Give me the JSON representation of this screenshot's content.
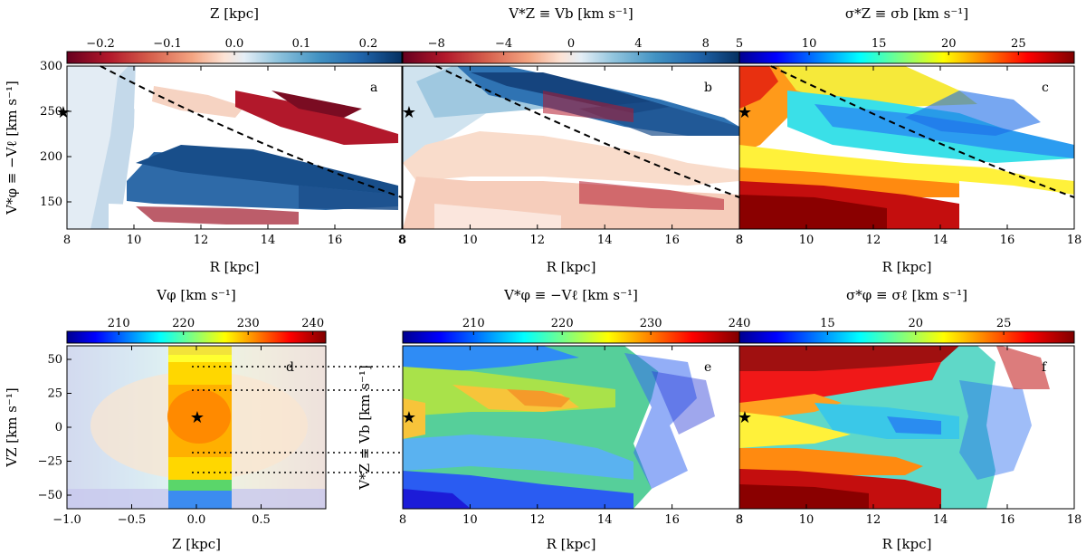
{
  "figure": {
    "description_hidden": ""
  },
  "chart_data": [
    {
      "type": "heatmap",
      "panel": "a",
      "colorbar_title": "Z [kpc]",
      "colorbar_ticks": [
        "−0.2",
        "−0.1",
        "0.0",
        "0.1",
        "0.2"
      ],
      "colorbar_range": [
        -0.25,
        0.25
      ],
      "colormap": "RdBu",
      "x_ticks": [
        "8",
        "10",
        "12",
        "14",
        "16",
        "8"
      ],
      "y_ticks": [
        "300",
        "250",
        "200",
        "150"
      ],
      "xlabel": "R [kpc]",
      "ylabel": "V*φ ≡ −Vℓ [km s⁻¹]",
      "xlim": [
        8,
        18
      ],
      "ylim": [
        120,
        300
      ],
      "sun_marker": {
        "x": 8.2,
        "y": 248
      },
      "dashed_curve": "decreasing reference curve from (9.2, 300) to (18, 153)"
    },
    {
      "type": "heatmap",
      "panel": "b",
      "colorbar_title": "V*Z ≡ Vb [km s⁻¹]",
      "colorbar_ticks": [
        "−8",
        "−4",
        "0",
        "4",
        "8"
      ],
      "colorbar_range": [
        -10,
        10
      ],
      "colormap": "RdBu",
      "x_ticks": [
        "8",
        "10",
        "12",
        "14",
        "16",
        "8"
      ],
      "xlabel": "R [kpc]",
      "xlim": [
        8,
        18
      ],
      "ylim": [
        120,
        300
      ],
      "sun_marker": {
        "x": 8.2,
        "y": 248
      }
    },
    {
      "type": "heatmap",
      "panel": "c",
      "colorbar_title": "σ*Z ≡ σb [km s⁻¹]",
      "colorbar_ticks": [
        "5",
        "10",
        "15",
        "20",
        "25"
      ],
      "colorbar_range": [
        5,
        29
      ],
      "colormap": "jet",
      "x_ticks": [
        "8",
        "10",
        "12",
        "14",
        "16",
        "18"
      ],
      "xlabel": "R [kpc]",
      "xlim": [
        8,
        18
      ],
      "ylim": [
        120,
        300
      ],
      "sun_marker": {
        "x": 8.2,
        "y": 248
      }
    },
    {
      "type": "heatmap",
      "panel": "d",
      "colorbar_title": "Vφ [km s⁻¹]",
      "colorbar_ticks": [
        "210",
        "220",
        "230",
        "240"
      ],
      "colorbar_range": [
        202,
        242
      ],
      "colormap": "jet",
      "x_ticks": [
        "−1.0",
        "−0.5",
        "0.0",
        "0.5"
      ],
      "y_ticks": [
        "50",
        "25",
        "0",
        "−25",
        "−50"
      ],
      "xlabel": "Z [kpc]",
      "ylabel": "VZ [km s⁻¹]",
      "xlim": [
        -1.0,
        1.0
      ],
      "ylim": [
        -60,
        60
      ],
      "highlight_band_z": [
        -0.2,
        0.25
      ],
      "sun_marker": {
        "x": 0.02,
        "y": 7
      },
      "dotted_levels_vz": [
        44,
        28,
        -20,
        -35
      ]
    },
    {
      "type": "heatmap",
      "panel": "e",
      "colorbar_title": "V*φ ≡ −Vℓ [km s⁻¹]",
      "colorbar_ticks": [
        "210",
        "220",
        "230",
        "240"
      ],
      "colorbar_range": [
        202,
        240
      ],
      "colormap": "jet",
      "x_ticks": [
        "8",
        "10",
        "12",
        "14",
        "16",
        "8"
      ],
      "xlabel": "R [kpc]",
      "ylabel": "V*Z ≡ Vb [km s⁻¹]",
      "xlim": [
        8,
        18
      ],
      "ylim": [
        -60,
        60
      ],
      "sun_marker": {
        "x": 8.2,
        "y": 7
      }
    },
    {
      "type": "heatmap",
      "panel": "f",
      "colorbar_title": "σ*φ ≡ σℓ [km s⁻¹]",
      "colorbar_ticks": [
        "15",
        "20",
        "25"
      ],
      "colorbar_range": [
        10,
        29
      ],
      "colormap": "jet",
      "x_ticks": [
        "8",
        "10",
        "12",
        "14",
        "16",
        "18"
      ],
      "xlabel": "R [kpc]",
      "xlim": [
        8,
        18
      ],
      "ylim": [
        -60,
        60
      ],
      "sun_marker": {
        "x": 8.2,
        "y": 7
      }
    }
  ]
}
